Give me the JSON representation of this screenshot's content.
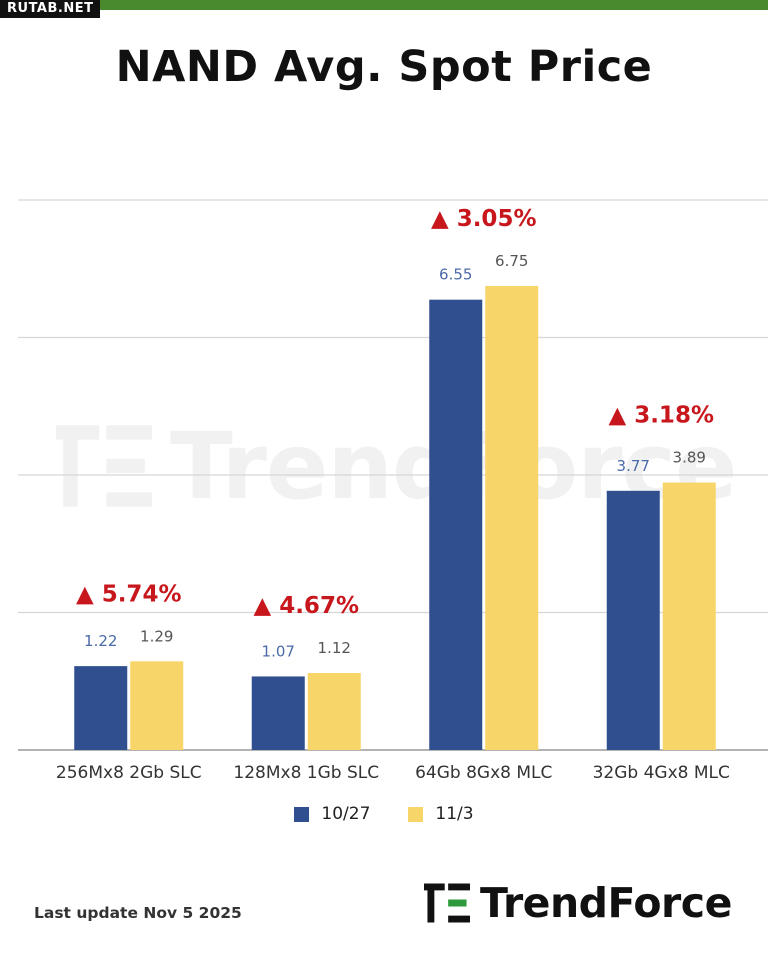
{
  "header": {
    "site_badge": "RUTAB.NET",
    "title": "NAND Avg. Spot Price"
  },
  "colors": {
    "series1": "#2f4f8f",
    "series2": "#f8d568",
    "change": "#c8161d",
    "grid": "#d6d6d6",
    "axis": "#9a9a9a",
    "top_bar": "#4a8a2e",
    "logo_green": "#2e9a3c"
  },
  "chart_data": {
    "type": "bar",
    "title": "NAND Avg. Spot Price",
    "categories": [
      "256Mx8 2Gb SLC",
      "128Mx8 1Gb SLC",
      "64Gb 8Gx8 MLC",
      "32Gb 4Gx8 MLC"
    ],
    "series": [
      {
        "name": "10/27",
        "values": [
          1.22,
          1.07,
          6.55,
          3.77
        ],
        "labels": [
          "1.22",
          "1.07",
          "6.55",
          "3.77"
        ]
      },
      {
        "name": "11/3",
        "values": [
          1.29,
          1.12,
          6.75,
          3.89
        ],
        "labels": [
          "1.29",
          "1.12",
          "6.75",
          "3.89"
        ]
      }
    ],
    "changes": [
      "▲ 5.74%",
      "▲ 4.67%",
      "▲ 3.05%",
      "▲ 3.18%"
    ],
    "ylim": [
      0,
      8
    ],
    "gridlines": [
      0,
      2,
      4,
      6,
      8
    ],
    "xlabel": "",
    "ylabel": "",
    "grid": true,
    "legend": "bottom-center"
  },
  "footer": {
    "last_update": "Last update Nov 5  2025",
    "logo_text": "TrendForce",
    "logo_icon": "trendforce-logo-icon"
  },
  "watermark": {
    "text": "TrendForce"
  }
}
